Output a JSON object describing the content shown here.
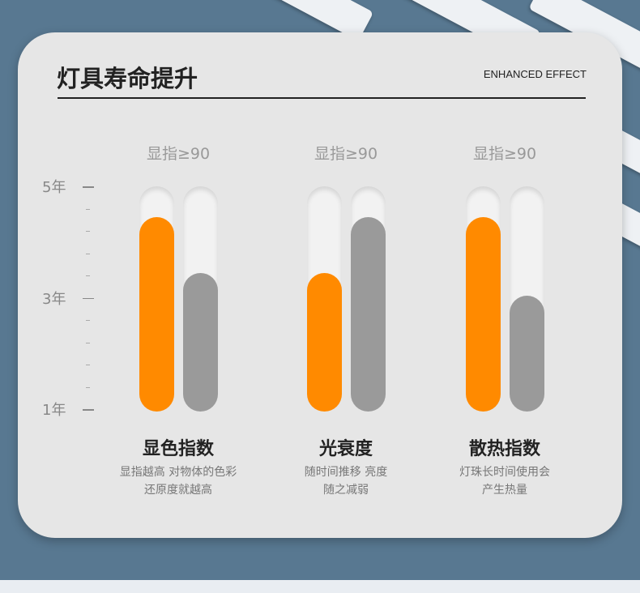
{
  "header": {
    "title": "灯具寿命提升",
    "subtitle": "ENHANCED EFFECT"
  },
  "colors": {
    "orange": "#ff8a00",
    "gray": "#9a9a9a",
    "background": "#587891",
    "card": "#e6e6e6"
  },
  "chart_data": {
    "type": "bar",
    "y_ticks": [
      "1年",
      "3年",
      "5年"
    ],
    "ylim": [
      1,
      5
    ],
    "groups": [
      {
        "head": "显指≥90",
        "name": "显色指数",
        "desc1": "显指越高 对物体的色彩",
        "desc2": "还原度就越高",
        "values": [
          4.4,
          3.4
        ]
      },
      {
        "head": "显指≥90",
        "name": "光衰度",
        "desc1": "随时间推移 亮度",
        "desc2": "随之减弱",
        "values": [
          3.4,
          4.4
        ]
      },
      {
        "head": "显指≥90",
        "name": "散热指数",
        "desc1": "灯珠长时间使用会",
        "desc2": "产生热量",
        "values": [
          4.4,
          3.0
        ]
      }
    ]
  }
}
